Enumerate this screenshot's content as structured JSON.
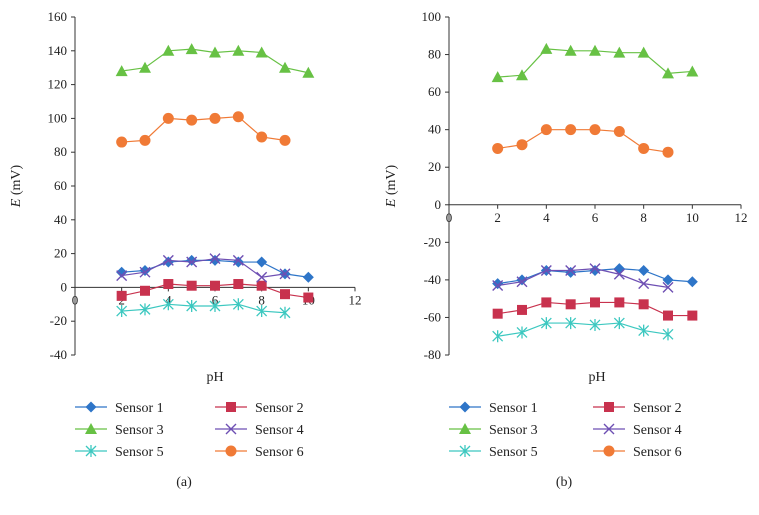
{
  "chart_data": [
    {
      "type": "line",
      "panel_label": "(a)",
      "xlabel": "pH",
      "ylabel_var": "E",
      "ylabel_unit": " (mV)",
      "xlim": [
        0,
        12
      ],
      "ylim": [
        -40,
        160
      ],
      "x_ticks": [
        0,
        2,
        4,
        6,
        8,
        10,
        12
      ],
      "y_ticks": [
        -40,
        -20,
        0,
        20,
        40,
        60,
        80,
        100,
        120,
        140,
        160
      ],
      "grid": false,
      "legend_position": "bottom",
      "series": [
        {
          "name": "Sensor 1",
          "marker": "diamond",
          "color": "#2E75C8",
          "x": [
            2,
            3,
            4,
            5,
            6,
            7,
            8,
            9,
            10
          ],
          "y": [
            9,
            10,
            15,
            16,
            16,
            15,
            15,
            8,
            6
          ]
        },
        {
          "name": "Sensor 2",
          "marker": "square",
          "color": "#C8324E",
          "x": [
            2,
            3,
            4,
            5,
            6,
            7,
            8,
            9,
            10
          ],
          "y": [
            -5,
            -2,
            2,
            1,
            1,
            2,
            1,
            -4,
            -6
          ]
        },
        {
          "name": "Sensor 3",
          "marker": "triangle",
          "color": "#67C144",
          "x": [
            2,
            3,
            4,
            5,
            6,
            7,
            8,
            9,
            10
          ],
          "y": [
            128,
            130,
            140,
            141,
            139,
            140,
            139,
            130,
            127
          ]
        },
        {
          "name": "Sensor 4",
          "marker": "x",
          "color": "#6E4FB3",
          "x": [
            2,
            3,
            4,
            5,
            6,
            7,
            8,
            9
          ],
          "y": [
            7,
            9,
            16,
            15,
            17,
            16,
            6,
            8
          ]
        },
        {
          "name": "Sensor 5",
          "marker": "star",
          "color": "#3CC8C0",
          "x": [
            2,
            3,
            4,
            5,
            6,
            7,
            8,
            9
          ],
          "y": [
            -14,
            -13,
            -10,
            -11,
            -11,
            -10,
            -14,
            -15
          ]
        },
        {
          "name": "Sensor 6",
          "marker": "circle",
          "color": "#F07A36",
          "x": [
            2,
            3,
            4,
            5,
            6,
            7,
            8,
            9
          ],
          "y": [
            86,
            87,
            100,
            99,
            100,
            101,
            89,
            87
          ]
        }
      ]
    },
    {
      "type": "line",
      "panel_label": "(b)",
      "xlabel": "pH",
      "ylabel_var": "E",
      "ylabel_unit": " (mV)",
      "xlim": [
        0,
        12
      ],
      "ylim": [
        -80,
        100
      ],
      "x_ticks": [
        0,
        2,
        4,
        6,
        8,
        10,
        12
      ],
      "y_ticks": [
        -80,
        -60,
        -40,
        -20,
        0,
        20,
        40,
        60,
        80,
        100
      ],
      "grid": false,
      "legend_position": "bottom",
      "series": [
        {
          "name": "Sensor 1",
          "marker": "diamond",
          "color": "#2E75C8",
          "x": [
            2,
            3,
            4,
            5,
            6,
            7,
            8,
            9,
            10
          ],
          "y": [
            -42,
            -40,
            -35,
            -36,
            -35,
            -34,
            -35,
            -40,
            -41
          ]
        },
        {
          "name": "Sensor 2",
          "marker": "square",
          "color": "#C8324E",
          "x": [
            2,
            3,
            4,
            5,
            6,
            7,
            8,
            9,
            10
          ],
          "y": [
            -58,
            -56,
            -52,
            -53,
            -52,
            -52,
            -53,
            -59,
            -59
          ]
        },
        {
          "name": "Sensor 3",
          "marker": "triangle",
          "color": "#67C144",
          "x": [
            2,
            3,
            4,
            5,
            6,
            7,
            8,
            9,
            10
          ],
          "y": [
            68,
            69,
            83,
            82,
            82,
            81,
            81,
            70,
            71
          ]
        },
        {
          "name": "Sensor 4",
          "marker": "x",
          "color": "#6E4FB3",
          "x": [
            2,
            3,
            4,
            5,
            6,
            7,
            8,
            9
          ],
          "y": [
            -43,
            -41,
            -35,
            -35,
            -34,
            -37,
            -42,
            -44
          ]
        },
        {
          "name": "Sensor 5",
          "marker": "star",
          "color": "#3CC8C0",
          "x": [
            2,
            3,
            4,
            5,
            6,
            7,
            8,
            9
          ],
          "y": [
            -70,
            -68,
            -63,
            -63,
            -64,
            -63,
            -67,
            -69
          ]
        },
        {
          "name": "Sensor 6",
          "marker": "circle",
          "color": "#F07A36",
          "x": [
            2,
            3,
            4,
            5,
            6,
            7,
            8,
            9
          ],
          "y": [
            30,
            32,
            40,
            40,
            40,
            39,
            30,
            28
          ]
        }
      ]
    }
  ]
}
